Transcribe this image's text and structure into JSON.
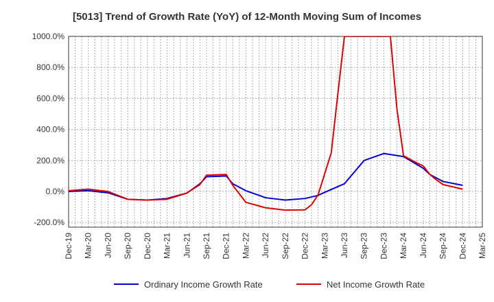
{
  "chart_data": {
    "type": "line",
    "title": "[5013]  Trend of Growth Rate (YoY) of 12-Month Moving Sum of Incomes",
    "y_tick_labels": [
      "1000.0%",
      "800.0%",
      "600.0%",
      "400.0%",
      "200.0%",
      "0.0%",
      "-200.0%"
    ],
    "y_ticks": [
      1000,
      800,
      600,
      400,
      200,
      0,
      -200
    ],
    "ylim": [
      -230,
      1000
    ],
    "x_tick_labels": [
      "Dec-19",
      "Mar-20",
      "Jun-20",
      "Sep-20",
      "Dec-20",
      "Mar-21",
      "Jun-21",
      "Sep-21",
      "Dec-21",
      "Mar-22",
      "Jun-22",
      "Sep-22",
      "Dec-22",
      "Mar-23",
      "Jun-23",
      "Sep-23",
      "Dec-23",
      "Mar-24",
      "Jun-24",
      "Sep-24",
      "Dec-24",
      "Mar-25"
    ],
    "x_months": [
      "2019-12",
      "2020-01",
      "2020-02",
      "2020-03",
      "2020-04",
      "2020-05",
      "2020-06",
      "2020-07",
      "2020-08",
      "2020-09",
      "2020-10",
      "2020-11",
      "2020-12",
      "2021-01",
      "2021-02",
      "2021-03",
      "2021-04",
      "2021-05",
      "2021-06",
      "2021-07",
      "2021-08",
      "2021-09",
      "2021-10",
      "2021-11",
      "2021-12",
      "2022-01",
      "2022-02",
      "2022-03",
      "2022-04",
      "2022-05",
      "2022-06",
      "2022-07",
      "2022-08",
      "2022-09",
      "2022-10",
      "2022-11",
      "2022-12",
      "2023-01",
      "2023-02",
      "2023-03",
      "2023-04",
      "2023-05",
      "2023-06",
      "2023-07",
      "2023-08",
      "2023-09",
      "2023-10",
      "2023-11",
      "2023-12",
      "2024-01",
      "2024-02",
      "2024-03",
      "2024-04",
      "2024-05",
      "2024-06",
      "2024-07",
      "2024-08",
      "2024-09",
      "2024-10",
      "2024-11",
      "2024-12",
      "2025-01",
      "2025-02",
      "2025-03"
    ],
    "grid": true,
    "legend_position": "bottom",
    "series": [
      {
        "name": "Ordinary Income Growth Rate",
        "color": "#0000cc",
        "points": [
          [
            "2019-12",
            0
          ],
          [
            "2020-03",
            5
          ],
          [
            "2020-06",
            -8
          ],
          [
            "2020-09",
            -50
          ],
          [
            "2020-12",
            -55
          ],
          [
            "2021-03",
            -45
          ],
          [
            "2021-06",
            -10
          ],
          [
            "2021-08",
            50
          ],
          [
            "2021-09",
            95
          ],
          [
            "2021-12",
            100
          ],
          [
            "2022-01",
            50
          ],
          [
            "2022-03",
            5
          ],
          [
            "2022-06",
            -40
          ],
          [
            "2022-09",
            -55
          ],
          [
            "2022-12",
            -45
          ],
          [
            "2023-02",
            -25
          ],
          [
            "2023-03",
            -5
          ],
          [
            "2023-06",
            50
          ],
          [
            "2023-09",
            200
          ],
          [
            "2023-12",
            245
          ],
          [
            "2024-03",
            225
          ],
          [
            "2024-06",
            150
          ],
          [
            "2024-07",
            110
          ],
          [
            "2024-09",
            65
          ],
          [
            "2024-12",
            40
          ]
        ]
      },
      {
        "name": "Net Income Growth Rate",
        "color": "#dd0000",
        "points": [
          [
            "2019-12",
            5
          ],
          [
            "2020-03",
            15
          ],
          [
            "2020-06",
            0
          ],
          [
            "2020-09",
            -50
          ],
          [
            "2020-12",
            -55
          ],
          [
            "2021-03",
            -50
          ],
          [
            "2021-06",
            -10
          ],
          [
            "2021-08",
            45
          ],
          [
            "2021-09",
            105
          ],
          [
            "2021-12",
            110
          ],
          [
            "2022-01",
            40
          ],
          [
            "2022-03",
            -70
          ],
          [
            "2022-06",
            -105
          ],
          [
            "2022-09",
            -120
          ],
          [
            "2022-12",
            -118
          ],
          [
            "2023-01",
            -85
          ],
          [
            "2023-02",
            -20
          ],
          [
            "2023-04",
            250
          ],
          [
            "2023-05",
            630
          ],
          [
            "2023-06",
            1000
          ],
          [
            "2024-01",
            1000
          ],
          [
            "2024-02",
            530
          ],
          [
            "2024-03",
            230
          ],
          [
            "2024-05",
            185
          ],
          [
            "2024-06",
            165
          ],
          [
            "2024-07",
            110
          ],
          [
            "2024-08",
            75
          ],
          [
            "2024-09",
            45
          ],
          [
            "2024-12",
            15
          ]
        ]
      }
    ]
  }
}
